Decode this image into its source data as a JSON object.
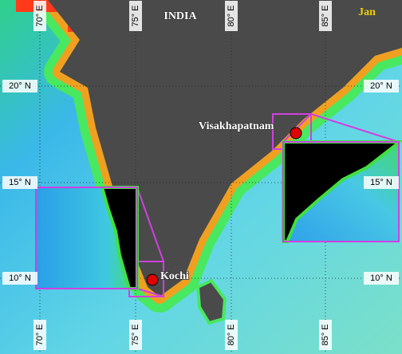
{
  "title": "INDIA",
  "month": "Jan",
  "lon_labels": [
    "70° E",
    "75° E",
    "80° E",
    "85° E"
  ],
  "lat_labels": [
    "20° N",
    "15° N",
    "10° N"
  ],
  "places": [
    {
      "name": "Visakhapatnam"
    },
    {
      "name": "Kochi"
    }
  ]
}
